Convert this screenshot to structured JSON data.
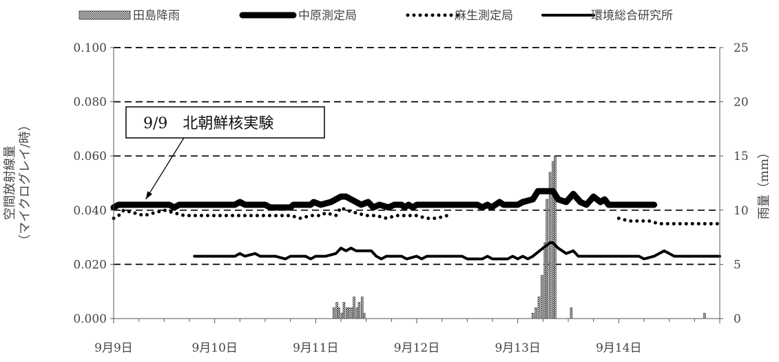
{
  "chart_data": {
    "type": "line",
    "title": "",
    "legend": {
      "placement": "top",
      "entries": [
        {
          "label": "田島降雨",
          "style": "bar"
        },
        {
          "label": "中原測定局",
          "style": "thick-line"
        },
        {
          "label": "麻生測定局",
          "style": "dotted-line"
        },
        {
          "label": "環境総合研究所",
          "style": "line"
        }
      ]
    },
    "x_axis": {
      "range": [
        9.0,
        15.0
      ],
      "ticks": [
        {
          "value": 9,
          "label": "9月9日"
        },
        {
          "value": 10,
          "label": "9月10日"
        },
        {
          "value": 11,
          "label": "9月11日"
        },
        {
          "value": 12,
          "label": "9月12日"
        },
        {
          "value": 13,
          "label": "9月13日"
        },
        {
          "value": 14,
          "label": "9月14日"
        }
      ]
    },
    "y_left": {
      "label": "空間放射線量\n（マイクログレイ/時）",
      "range": [
        0,
        0.1
      ],
      "ticks": [
        "0.000",
        "0.020",
        "0.040",
        "0.060",
        "0.080",
        "0.100"
      ]
    },
    "y_right": {
      "label": "雨量（mm）",
      "range": [
        0,
        25
      ],
      "ticks": [
        "0",
        "5",
        "10",
        "15",
        "20",
        "25"
      ]
    },
    "grid": "horizontal-dashed",
    "annotation": {
      "text": "9/9　北朝鮮核実験",
      "target": {
        "x": 9.4,
        "y": 0.042
      }
    },
    "series": [
      {
        "name": "中原測定局",
        "style": "thick-line",
        "points": [
          [
            9.0,
            0.041
          ],
          [
            9.05,
            0.042
          ],
          [
            9.1,
            0.042
          ],
          [
            9.3,
            0.042
          ],
          [
            9.55,
            0.042
          ],
          [
            9.6,
            0.041
          ],
          [
            9.65,
            0.042
          ],
          [
            10.2,
            0.042
          ],
          [
            10.25,
            0.043
          ],
          [
            10.3,
            0.042
          ],
          [
            10.5,
            0.042
          ],
          [
            10.55,
            0.041
          ],
          [
            10.75,
            0.041
          ],
          [
            10.78,
            0.042
          ],
          [
            10.95,
            0.042
          ],
          [
            10.98,
            0.043
          ],
          [
            11.05,
            0.042
          ],
          [
            11.15,
            0.043
          ],
          [
            11.25,
            0.045
          ],
          [
            11.3,
            0.045
          ],
          [
            11.35,
            0.044
          ],
          [
            11.4,
            0.043
          ],
          [
            11.45,
            0.042
          ],
          [
            11.52,
            0.043
          ],
          [
            11.57,
            0.041
          ],
          [
            11.63,
            0.042
          ],
          [
            11.72,
            0.041
          ],
          [
            11.78,
            0.042
          ],
          [
            11.85,
            0.042
          ],
          [
            11.88,
            0.041
          ],
          [
            11.92,
            0.042
          ],
          [
            11.96,
            0.041
          ],
          [
            12.0,
            0.042
          ],
          [
            12.1,
            0.042
          ],
          [
            12.6,
            0.042
          ],
          [
            12.65,
            0.041
          ],
          [
            12.7,
            0.042
          ],
          [
            12.74,
            0.041
          ],
          [
            12.78,
            0.042
          ],
          [
            12.82,
            0.043
          ],
          [
            12.86,
            0.042
          ],
          [
            13.0,
            0.042
          ],
          [
            13.05,
            0.043
          ],
          [
            13.15,
            0.044
          ],
          [
            13.2,
            0.047
          ],
          [
            13.35,
            0.047
          ],
          [
            13.4,
            0.044
          ],
          [
            13.48,
            0.043
          ],
          [
            13.55,
            0.046
          ],
          [
            13.62,
            0.043
          ],
          [
            13.68,
            0.042
          ],
          [
            13.75,
            0.045
          ],
          [
            13.82,
            0.043
          ],
          [
            13.86,
            0.044
          ],
          [
            13.9,
            0.042
          ],
          [
            14.0,
            0.042
          ],
          [
            14.35,
            0.042
          ]
        ]
      },
      {
        "name": "麻生測定局",
        "style": "dotted-line",
        "segments": [
          [
            [
              9.0,
              0.037
            ],
            [
              9.05,
              0.038
            ],
            [
              9.1,
              0.04
            ],
            [
              9.2,
              0.039
            ],
            [
              9.3,
              0.038
            ],
            [
              9.4,
              0.039
            ],
            [
              9.5,
              0.04
            ],
            [
              9.6,
              0.039
            ],
            [
              9.7,
              0.038
            ],
            [
              10.0,
              0.038
            ],
            [
              10.5,
              0.038
            ],
            [
              10.75,
              0.038
            ],
            [
              10.85,
              0.037
            ],
            [
              10.95,
              0.038
            ],
            [
              11.05,
              0.038
            ],
            [
              11.1,
              0.039
            ],
            [
              11.2,
              0.038
            ],
            [
              11.25,
              0.041
            ],
            [
              11.3,
              0.04
            ],
            [
              11.4,
              0.039
            ],
            [
              11.5,
              0.038
            ],
            [
              11.6,
              0.038
            ],
            [
              11.7,
              0.037
            ],
            [
              11.8,
              0.038
            ],
            [
              11.9,
              0.038
            ],
            [
              12.0,
              0.038
            ],
            [
              12.1,
              0.037
            ],
            [
              12.2,
              0.037
            ],
            [
              12.3,
              0.038
            ]
          ],
          [
            [
              14.0,
              0.037
            ],
            [
              14.1,
              0.036
            ],
            [
              14.2,
              0.036
            ],
            [
              14.3,
              0.036
            ],
            [
              14.4,
              0.035
            ],
            [
              14.6,
              0.035
            ],
            [
              14.8,
              0.035
            ],
            [
              15.0,
              0.035
            ]
          ]
        ]
      },
      {
        "name": "環境総合研究所",
        "style": "line",
        "points": [
          [
            9.8,
            0.023
          ],
          [
            10.0,
            0.023
          ],
          [
            10.2,
            0.023
          ],
          [
            10.25,
            0.024
          ],
          [
            10.3,
            0.023
          ],
          [
            10.4,
            0.024
          ],
          [
            10.45,
            0.023
          ],
          [
            10.6,
            0.023
          ],
          [
            10.7,
            0.022
          ],
          [
            10.75,
            0.023
          ],
          [
            10.9,
            0.023
          ],
          [
            10.95,
            0.022
          ],
          [
            11.0,
            0.023
          ],
          [
            11.1,
            0.023
          ],
          [
            11.2,
            0.024
          ],
          [
            11.25,
            0.026
          ],
          [
            11.3,
            0.025
          ],
          [
            11.35,
            0.026
          ],
          [
            11.4,
            0.025
          ],
          [
            11.55,
            0.025
          ],
          [
            11.6,
            0.023
          ],
          [
            11.65,
            0.022
          ],
          [
            11.7,
            0.023
          ],
          [
            11.85,
            0.023
          ],
          [
            11.9,
            0.022
          ],
          [
            12.0,
            0.023
          ],
          [
            12.05,
            0.022
          ],
          [
            12.1,
            0.023
          ],
          [
            12.45,
            0.023
          ],
          [
            12.5,
            0.022
          ],
          [
            12.65,
            0.022
          ],
          [
            12.7,
            0.023
          ],
          [
            12.75,
            0.022
          ],
          [
            12.9,
            0.022
          ],
          [
            12.95,
            0.023
          ],
          [
            13.0,
            0.022
          ],
          [
            13.05,
            0.023
          ],
          [
            13.1,
            0.022
          ],
          [
            13.15,
            0.023
          ],
          [
            13.25,
            0.026
          ],
          [
            13.32,
            0.028
          ],
          [
            13.35,
            0.028
          ],
          [
            13.4,
            0.026
          ],
          [
            13.48,
            0.024
          ],
          [
            13.55,
            0.025
          ],
          [
            13.6,
            0.023
          ],
          [
            13.75,
            0.023
          ],
          [
            14.0,
            0.023
          ],
          [
            14.2,
            0.023
          ],
          [
            14.25,
            0.022
          ],
          [
            14.35,
            0.023
          ],
          [
            14.45,
            0.025
          ],
          [
            14.55,
            0.023
          ],
          [
            15.0,
            0.023
          ]
        ]
      },
      {
        "name": "田島降雨",
        "axis": "right",
        "style": "bar",
        "width": 0.02,
        "points": [
          [
            11.18,
            1.0
          ],
          [
            11.21,
            1.5
          ],
          [
            11.23,
            1.0
          ],
          [
            11.26,
            0.5
          ],
          [
            11.28,
            1.5
          ],
          [
            11.31,
            1.0
          ],
          [
            11.33,
            1.0
          ],
          [
            11.36,
            1.0
          ],
          [
            11.38,
            2.0
          ],
          [
            11.41,
            1.0
          ],
          [
            11.43,
            1.5
          ],
          [
            11.46,
            2.0
          ],
          [
            11.48,
            0.5
          ],
          [
            13.15,
            0.5
          ],
          [
            13.18,
            1.0
          ],
          [
            13.21,
            2.0
          ],
          [
            13.24,
            4.0
          ],
          [
            13.27,
            7.0
          ],
          [
            13.29,
            11.0
          ],
          [
            13.32,
            13.5
          ],
          [
            13.35,
            14.5
          ],
          [
            13.37,
            15.0
          ],
          [
            13.53,
            1.0
          ],
          [
            14.85,
            0.5
          ]
        ]
      }
    ]
  }
}
